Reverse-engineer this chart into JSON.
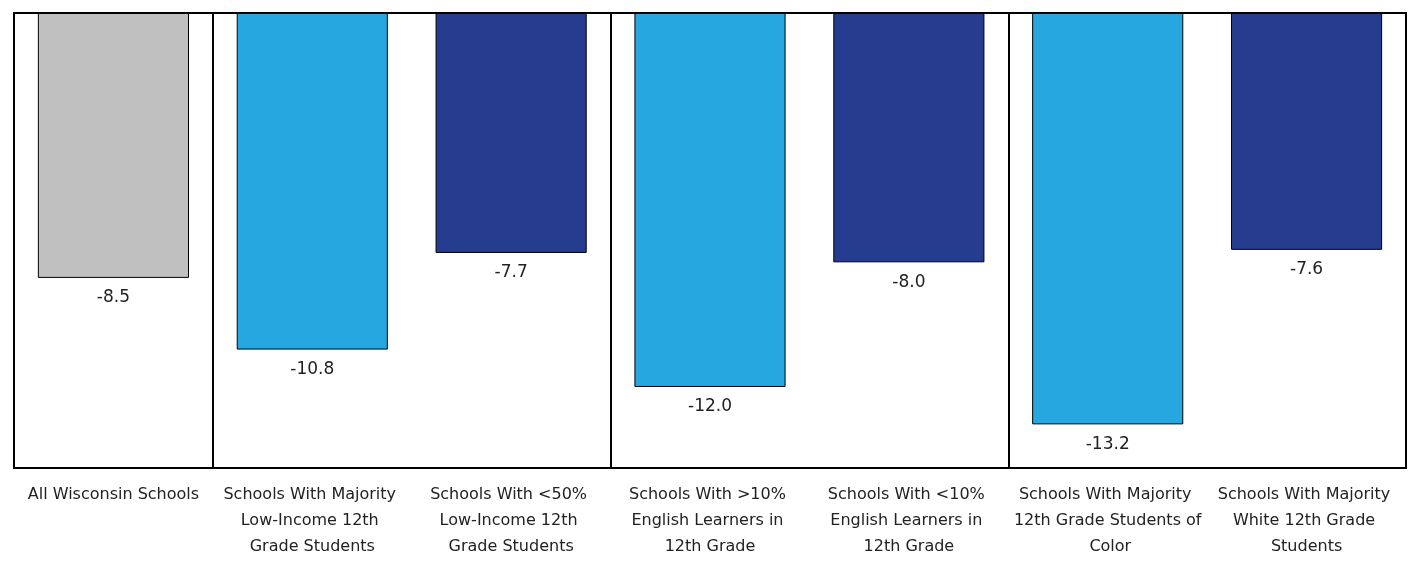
{
  "chart_data": {
    "type": "bar",
    "categories": [
      "All Wisconsin Schools",
      "Schools With Majority Low-Income 12th Grade Students",
      "Schools With <50% Low-Income 12th Grade Students",
      "Schools With >10% English Learners in 12th Grade",
      "Schools With <10% English Learners in 12th Grade",
      "Schools With Majority 12th Grade Students of Color",
      "Schools With Majority White 12th Grade Students"
    ],
    "values": [
      -8.5,
      -10.8,
      -7.7,
      -12.0,
      -8.0,
      -13.2,
      -7.6
    ],
    "value_labels": [
      "-8.5",
      "-10.8",
      "-7.7",
      "-12.0",
      "-8.0",
      "-13.2",
      "-7.6"
    ],
    "colors": [
      "#c0c0c1",
      "#27a7df",
      "#253c8f",
      "#27a7df",
      "#253c8f",
      "#27a7df",
      "#253c8f"
    ],
    "ylim": [
      -14.6,
      0
    ],
    "tick_labels": "x"
  }
}
